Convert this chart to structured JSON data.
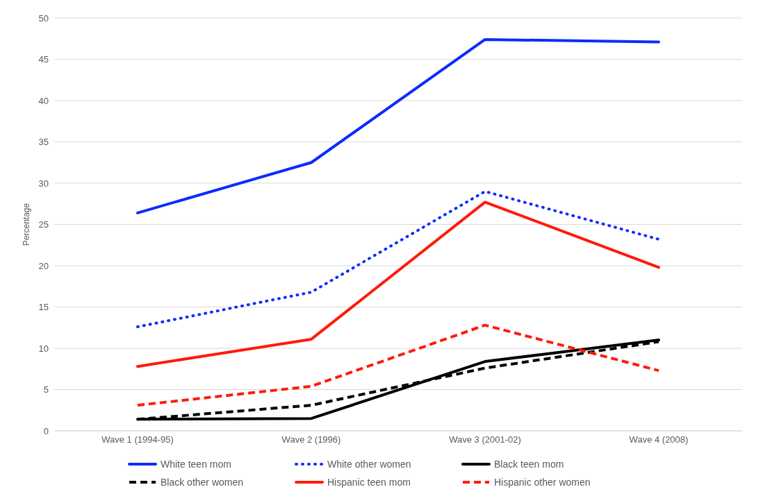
{
  "chart_data": {
    "type": "line",
    "ylabel": "Percentage",
    "categories": [
      "Wave 1 (1994-95)",
      "Wave 2 (1996)",
      "Wave 3 (2001-02)",
      "Wave 4 (2008)"
    ],
    "series": [
      {
        "name": "White teen mom",
        "color": "#0a2cff",
        "line_style": "solid",
        "values": [
          26.4,
          32.5,
          47.4,
          47.1
        ]
      },
      {
        "name": "White other women",
        "color": "#0a2cff",
        "line_style": "dotted",
        "values": [
          12.6,
          16.8,
          29.0,
          23.2
        ]
      },
      {
        "name": "Black teen mom",
        "color": "#000000",
        "line_style": "solid",
        "values": [
          1.4,
          1.5,
          8.4,
          11.0
        ]
      },
      {
        "name": "Black other women",
        "color": "#000000",
        "line_style": "dashed",
        "values": [
          1.4,
          3.1,
          7.6,
          10.8
        ]
      },
      {
        "name": "Hispanic teen mom",
        "color": "#ff1a0a",
        "line_style": "solid",
        "values": [
          7.8,
          11.1,
          27.7,
          19.8
        ]
      },
      {
        "name": "Hispanic other women",
        "color": "#ff1a0a",
        "line_style": "dashed",
        "values": [
          3.1,
          5.4,
          12.8,
          7.3
        ]
      }
    ],
    "ylim": [
      0,
      50
    ],
    "yticks": [
      0,
      5,
      10,
      15,
      20,
      25,
      30,
      35,
      40,
      45,
      50
    ],
    "grid": "y",
    "legend": "bottom",
    "marker": "none"
  }
}
